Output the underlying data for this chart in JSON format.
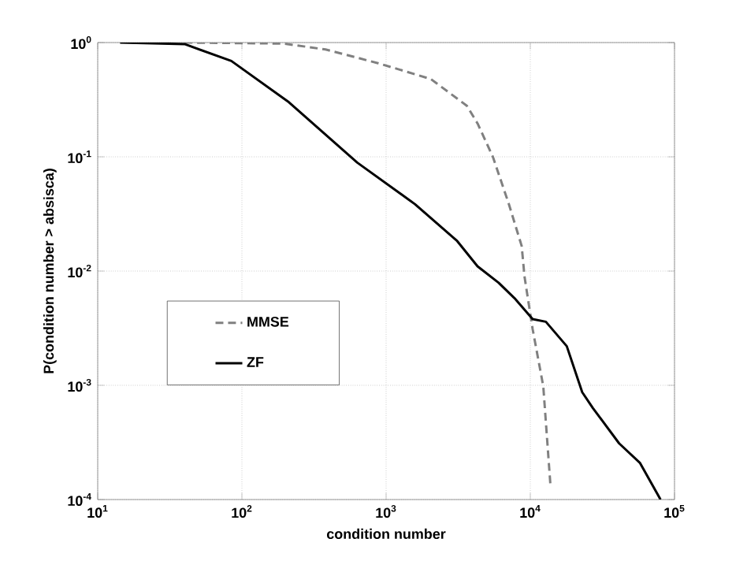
{
  "chart_data": {
    "type": "line",
    "xlabel": "condition number",
    "ylabel": "P(condition number > absisca)",
    "log": "xy",
    "grid": true,
    "legend": "left",
    "xlim": [
      10,
      100000
    ],
    "ylim": [
      0.0001,
      1
    ],
    "xticks": [
      {
        "value": 10,
        "label": "10$^{1}$"
      },
      {
        "value": 100,
        "label": "10$^{2}$"
      },
      {
        "value": 1000,
        "label": "10$^{3}$"
      },
      {
        "value": 10000,
        "label": "10$^{4}$"
      },
      {
        "value": 100000,
        "label": "10$^{5}$"
      }
    ],
    "yticks": [
      {
        "value": 0.0001,
        "label": "10$^{-4}$"
      },
      {
        "value": 0.001,
        "label": "10$^{-3}$"
      },
      {
        "value": 0.01,
        "label": "10$^{-2}$"
      },
      {
        "value": 0.1,
        "label": "10$^{-1}$"
      },
      {
        "value": 1,
        "label": "10$^{0}$"
      }
    ],
    "series": [
      {
        "name": "MMSE",
        "color": "#808080",
        "line_style": "dashed",
        "x": [
          40,
          195,
          380,
          880,
          2040,
          3630,
          4315,
          5500,
          7080,
          8710,
          9120,
          10380,
          12300,
          13800
        ],
        "values": [
          1,
          0.98,
          0.87,
          0.66,
          0.48,
          0.28,
          0.195,
          0.1,
          0.039,
          0.0166,
          0.0089,
          0.0031,
          0.00098,
          0.000132
        ]
      },
      {
        "name": "ZF",
        "color": "#000000",
        "line_style": "solid",
        "x": [
          14.3,
          40,
          84.5,
          212,
          631,
          1585,
          3090,
          4305,
          6030,
          7760,
          10380,
          12820,
          17900,
          22900,
          27200,
          41300,
          57500,
          80000
        ],
        "values": [
          1,
          0.97,
          0.69,
          0.3,
          0.089,
          0.0385,
          0.0185,
          0.011,
          0.0079,
          0.0058,
          0.0038,
          0.0036,
          0.0022,
          0.00087,
          0.00063,
          0.00031,
          0.00021,
          0.0001
        ]
      }
    ]
  }
}
